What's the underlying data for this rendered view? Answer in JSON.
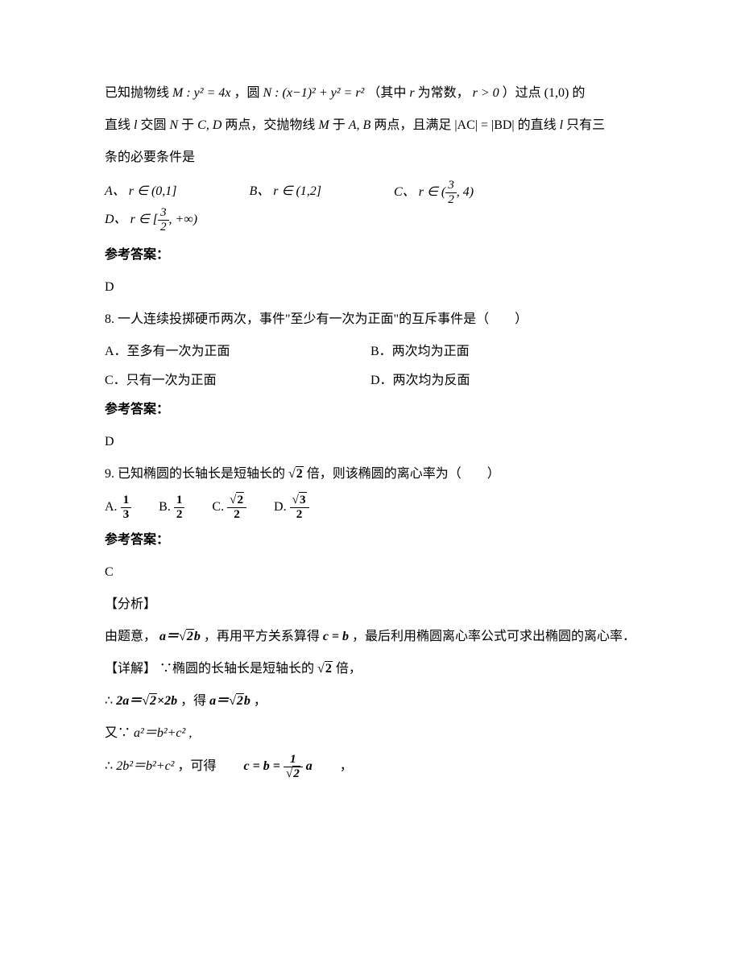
{
  "q7": {
    "line1_a": "已知抛物线",
    "line1_m": "M : y² = 4x",
    "line1_b": "，圆",
    "line1_n": "N : (x−1)² + y² = r²",
    "line1_c": "（其中",
    "line1_r": "r",
    "line1_d": "为常数，",
    "line1_rcond": "r > 0",
    "line1_e": "）过点",
    "line1_pt": "(1,0)",
    "line1_f": " 的",
    "line2_a": "直线",
    "line2_l": "l",
    "line2_b": " 交圆",
    "line2_N": "N",
    "line2_c": "于",
    "line2_CD": "C, D",
    "line2_d": "两点，交抛物线",
    "line2_M": "M",
    "line2_e": "于",
    "line2_AB": "A, B",
    "line2_f": "两点，且满足",
    "line2_cond": "|AC| = |BD|",
    "line2_g": "的直线",
    "line2_l2": "l",
    "line2_h": " 只有三",
    "line3": "条的必要条件是",
    "optA_l": "A、",
    "optA_m": "r ∈ (0,1]",
    "optB_l": "B、",
    "optB_m": "r ∈ (1,2]",
    "optC_l": "C、",
    "optD_l": "D、",
    "ans_label": "参考答案：",
    "ans": "D"
  },
  "q8": {
    "stem": "8. 一人连续投掷硬币两次，事件\"至少有一次为正面\"的互斥事件是（　　）",
    "A": "A．至多有一次为正面",
    "B": "B．两次均为正面",
    "C": "C．只有一次为正面",
    "D": "D．两次均为反面",
    "ans_label": "参考答案：",
    "ans": "D"
  },
  "q9": {
    "stem_a": "9. 已知椭圆的长轴长是短轴长的",
    "stem_b": "倍，则该椭圆的离心率为（　　）",
    "A": "A.",
    "B": "B.",
    "C": "C.",
    "D": "D.",
    "A_num": "1",
    "A_den": "3",
    "B_num": "1",
    "B_den": "2",
    "C_den": "2",
    "D_den": "2",
    "ans_label": "参考答案：",
    "ans": "C",
    "analysis_h": "【分析】",
    "analysis_a": "由题意，",
    "analysis_eq1_a": "a",
    "analysis_eq1_b": "b",
    "analysis_b": "，再用平方关系算得",
    "analysis_eq2": "c = b",
    "analysis_c": "，最后利用椭圆离心率公式可求出椭圆的离心率．",
    "detail_h": "【详解】",
    "detail_a": "∵椭圆的长轴长是短轴长的",
    "detail_b": "倍，",
    "step1_a": "∴",
    "step1_mid": "，得",
    "step1_end": "，",
    "step2_a": "又∵",
    "step2_eq": "a²＝b²+c²",
    "step2_b": ",",
    "step3_a": "∴",
    "step3_eq1": "2b²＝b²+c²",
    "step3_b": "，可得",
    "step3_end": "，",
    "sqrt2": "2",
    "sqrt3": "3",
    "two": "2",
    "one": "1",
    "a": "a",
    "b": "b",
    "c": "c",
    "eq": "＝",
    "times": "×"
  }
}
